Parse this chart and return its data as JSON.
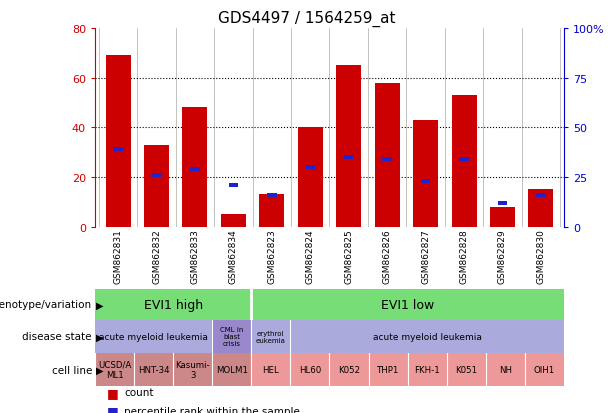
{
  "title": "GDS4497 / 1564259_at",
  "samples": [
    "GSM862831",
    "GSM862832",
    "GSM862833",
    "GSM862834",
    "GSM862823",
    "GSM862824",
    "GSM862825",
    "GSM862826",
    "GSM862827",
    "GSM862828",
    "GSM862829",
    "GSM862830"
  ],
  "counts": [
    69,
    33,
    48,
    5,
    13,
    40,
    65,
    58,
    43,
    53,
    8,
    15
  ],
  "percentile_ranks": [
    39,
    26,
    29,
    21,
    16,
    30,
    35,
    34,
    23,
    34,
    12,
    16
  ],
  "ylim_left": [
    0,
    80
  ],
  "ylim_right": [
    0,
    100
  ],
  "yticks_left": [
    0,
    20,
    40,
    60,
    80
  ],
  "yticks_right": [
    0,
    25,
    50,
    75,
    100
  ],
  "bar_color": "#cc0000",
  "square_color": "#2222cc",
  "genotype_color": "#77dd77",
  "disease_color": "#aaaadd",
  "cell_color_dark": "#cc8888",
  "cell_color_light": "#ee9999",
  "row_label_color": "#000000",
  "left_ytick_color": "#cc0000",
  "right_ytick_color": "#0000cc",
  "grid_dotted_color": "#000000",
  "tick_bg_color": "#cccccc",
  "legend": [
    {
      "label": "count",
      "color": "#cc0000"
    },
    {
      "label": "percentile rank within the sample",
      "color": "#2222cc"
    }
  ]
}
